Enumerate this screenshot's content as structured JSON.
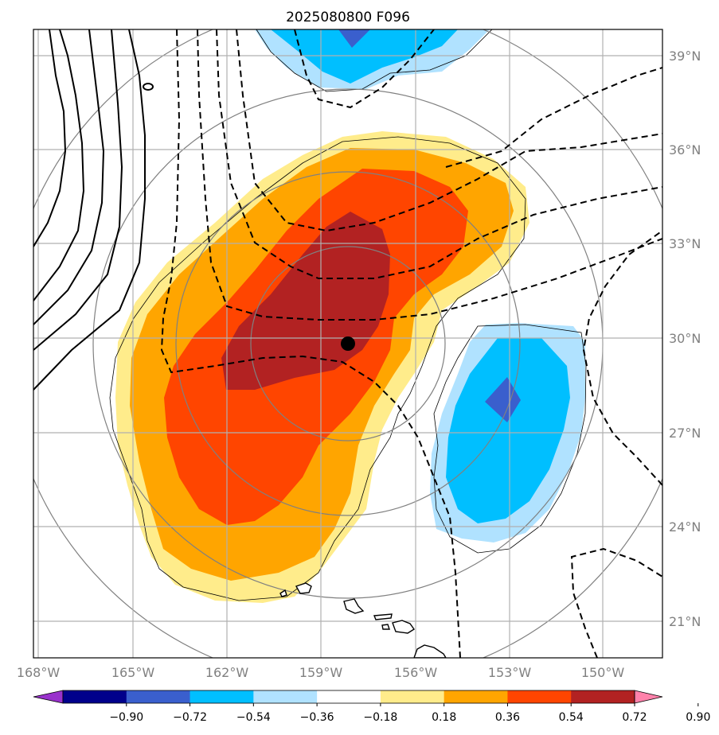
{
  "title": "2025080800 F096",
  "lat_labels": [
    "39°N",
    "36°N",
    "33°N",
    "30°N",
    "27°N",
    "24°N",
    "21°N"
  ],
  "lon_labels": [
    "168°W",
    "165°W",
    "162°W",
    "159°W",
    "156°W",
    "153°W",
    "150°W"
  ],
  "colorbar": {
    "colors": [
      "#9932cc",
      "#00008b",
      "#3a5fcd",
      "#00bfff",
      "#b0e2ff",
      "#ffffff",
      "#ffec8b",
      "#ffa500",
      "#ff4500",
      "#b22222",
      "#ff82ab"
    ],
    "tick_labels": [
      "−0.90",
      "−0.72",
      "−0.54",
      "−0.36",
      "−0.18",
      "0.18",
      "0.36",
      "0.54",
      "0.72",
      "0.90"
    ]
  },
  "storm_marker": {
    "lat": 29.8,
    "lon": "158.2°W"
  }
}
